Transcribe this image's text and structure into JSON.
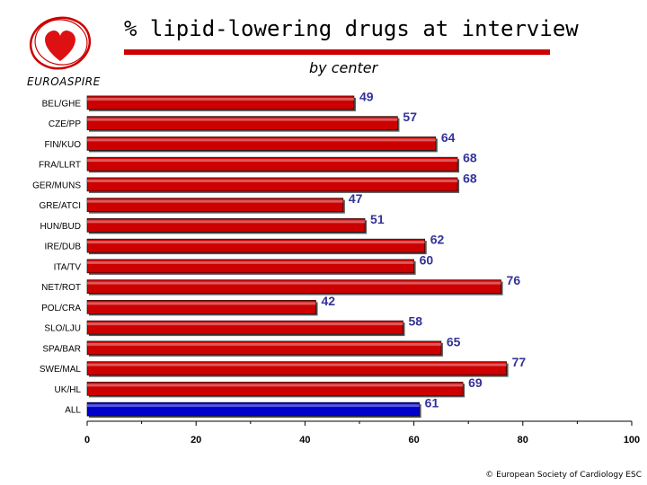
{
  "header": {
    "title": "% lipid-lowering drugs at interview",
    "subtitle": "by center",
    "brand": "EUROASPIRE",
    "logo_icon": "heart-icon"
  },
  "footer": {
    "copyright": "© European Society of Cardiology ESC"
  },
  "colors": {
    "bar": "#cc0000",
    "highlight_bar": "#0000cc",
    "value_label": "#333399",
    "title_rule": "#cc0000"
  },
  "chart_data": {
    "type": "bar",
    "orientation": "horizontal",
    "categories": [
      "BEL/GHE",
      "CZE/PP",
      "FIN/KUO",
      "FRA/LLRT",
      "GER/MUNS",
      "GRE/ATCI",
      "HUN/BUD",
      "IRE/DUB",
      "ITA/TV",
      "NET/ROT",
      "POL/CRA",
      "SLO/LJU",
      "SPA/BAR",
      "SWE/MAL",
      "UK/HL",
      "ALL"
    ],
    "values": [
      49,
      57,
      64,
      68,
      68,
      47,
      51,
      62,
      60,
      76,
      42,
      58,
      65,
      77,
      69,
      61
    ],
    "highlight": [
      "ALL"
    ],
    "xlim": [
      0,
      100
    ],
    "xticks": [
      0,
      20,
      40,
      60,
      80,
      100
    ],
    "data_labels": true,
    "legend": false,
    "grid": false
  }
}
